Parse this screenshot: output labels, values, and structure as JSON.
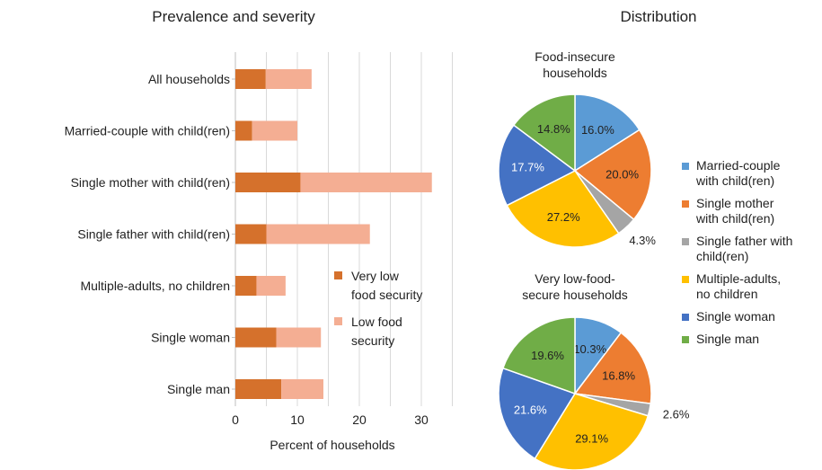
{
  "panels": {
    "left_title": "Prevalence and severity",
    "right_title": "Distribution"
  },
  "colors": {
    "very_low": "#D5712C",
    "low": "#F4AE93",
    "married_couple": "#5B9BD5",
    "single_mother": "#ED7D31",
    "single_father": "#A5A5A5",
    "multiple_adults": "#FFC000",
    "single_woman": "#4472C4",
    "single_man": "#70AD47",
    "grid": "#D9D9D9",
    "text": "#222222"
  },
  "chart_data": [
    {
      "type": "bar",
      "orientation": "horizontal",
      "stacked": true,
      "title": "Prevalence and severity",
      "xlabel": "Percent of households",
      "ylabel": "",
      "xlim": [
        0,
        35
      ],
      "xticks": [
        0,
        10,
        20,
        30
      ],
      "grid": true,
      "legend_position": "right-center",
      "categories": [
        "All households",
        "Married-couple with child(ren)",
        "Single mother with child(ren)",
        "Single father with child(ren)",
        "Multiple-adults, no children",
        "Single woman",
        "Single man"
      ],
      "series": [
        {
          "name": "Very low food security",
          "legend_lines": [
            "Very low",
            "food security"
          ],
          "color": "#D5712C",
          "values": [
            4.9,
            2.7,
            10.5,
            5.0,
            3.4,
            6.6,
            7.4
          ]
        },
        {
          "name": "Low food security",
          "legend_lines": [
            "Low food",
            "security"
          ],
          "color": "#F4AE93",
          "values": [
            7.4,
            7.3,
            21.2,
            16.7,
            4.7,
            7.2,
            6.8
          ]
        }
      ]
    },
    {
      "type": "pie",
      "title": "Food-insecure households",
      "title_lines": [
        "Food-insecure",
        "households"
      ],
      "labels": [
        "Married-couple with child(ren)",
        "Single mother with child(ren)",
        "Single father with child(ren)",
        "Multiple-adults, no children",
        "Single woman",
        "Single man"
      ],
      "values": [
        16.0,
        20.0,
        4.3,
        27.2,
        17.7,
        14.8
      ],
      "value_labels": [
        "16.0%",
        "20.0%",
        "4.3%",
        "27.2%",
        "17.7%",
        "14.8%"
      ]
    },
    {
      "type": "pie",
      "title": "Very low-food-secure households",
      "title_lines": [
        "Very low-food-",
        "secure households"
      ],
      "labels": [
        "Married-couple with child(ren)",
        "Single mother with child(ren)",
        "Single father with child(ren)",
        "Multiple-adults, no children",
        "Single woman",
        "Single man"
      ],
      "values": [
        10.3,
        16.8,
        2.6,
        29.1,
        21.6,
        19.6
      ],
      "value_labels": [
        "10.3%",
        "16.8%",
        "2.6%",
        "29.1%",
        "21.6%",
        "19.6%"
      ]
    }
  ],
  "pie_legend": [
    {
      "lines": [
        "Married-couple",
        "with child(ren)"
      ],
      "color": "#5B9BD5"
    },
    {
      "lines": [
        "Single mother",
        "with child(ren)"
      ],
      "color": "#ED7D31"
    },
    {
      "lines": [
        "Single father with",
        "child(ren)"
      ],
      "color": "#A5A5A5"
    },
    {
      "lines": [
        "Multiple-adults,",
        "no children"
      ],
      "color": "#FFC000"
    },
    {
      "lines": [
        "Single woman"
      ],
      "color": "#4472C4"
    },
    {
      "lines": [
        "Single man"
      ],
      "color": "#70AD47"
    }
  ]
}
